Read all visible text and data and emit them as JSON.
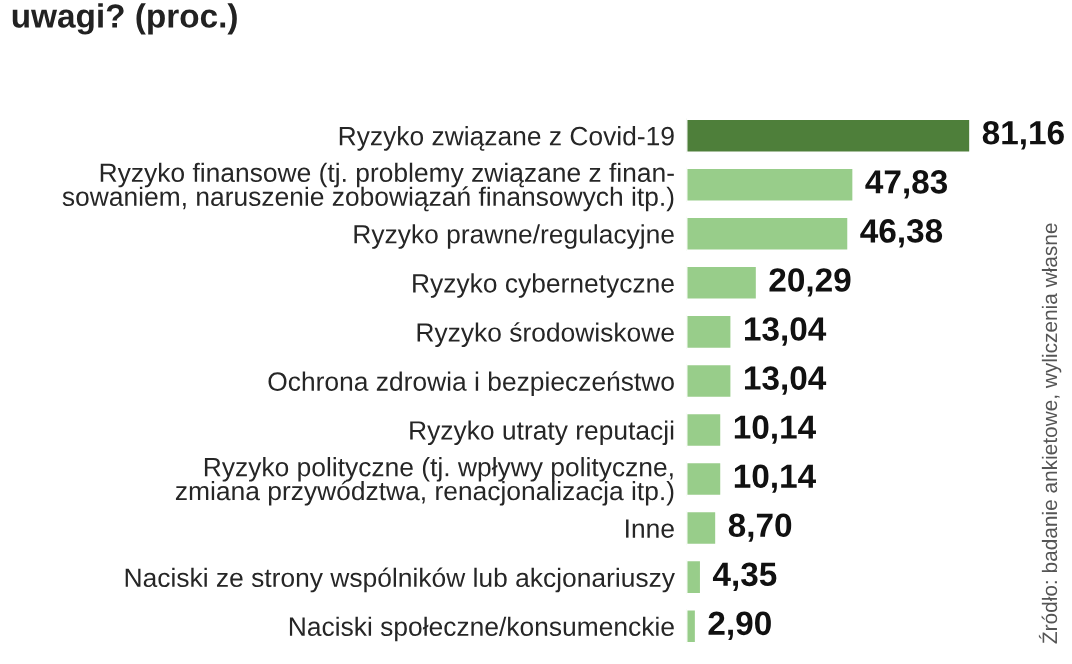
{
  "chart_data": {
    "type": "bar",
    "orientation": "horizontal",
    "title": "uwagi? (proc.)",
    "categories": [
      "Ryzyko związane z Covid-19",
      "Ryzyko finansowe (tj. problemy związane z finan-\nsowaniem, naruszenie zobowiązań finansowych itp.)",
      "Ryzyko prawne/regulacyjne",
      "Ryzyko cybernetyczne",
      "Ryzyko środowiskowe",
      "Ochrona zdrowia i bezpieczeństwo",
      "Ryzyko utraty reputacji",
      "Ryzyko polityczne (tj. wpływy polityczne,\nzmiana przywództwa, renacjonalizacja itp.)",
      "Inne",
      "Naciski ze strony wspólników lub akcjonariuszy",
      "Naciski społeczne/konsumenckie"
    ],
    "values": [
      81.16,
      47.83,
      46.38,
      20.29,
      13.04,
      13.04,
      10.14,
      10.14,
      8.7,
      4.35,
      2.9
    ],
    "value_labels": [
      "81,16",
      "47,83",
      "46,38",
      "20,29",
      "13,04",
      "13,04",
      "10,14",
      "10,14",
      "8,70",
      "4,35",
      "2,90"
    ],
    "colors": [
      "#4e7f3a",
      "#98cd8a",
      "#98cd8a",
      "#98cd8a",
      "#98cd8a",
      "#98cd8a",
      "#98cd8a",
      "#98cd8a",
      "#98cd8a",
      "#98cd8a",
      "#98cd8a"
    ],
    "annotations": [
      "Źródło: badanie ankietowe, wyliczenia własne"
    ]
  }
}
